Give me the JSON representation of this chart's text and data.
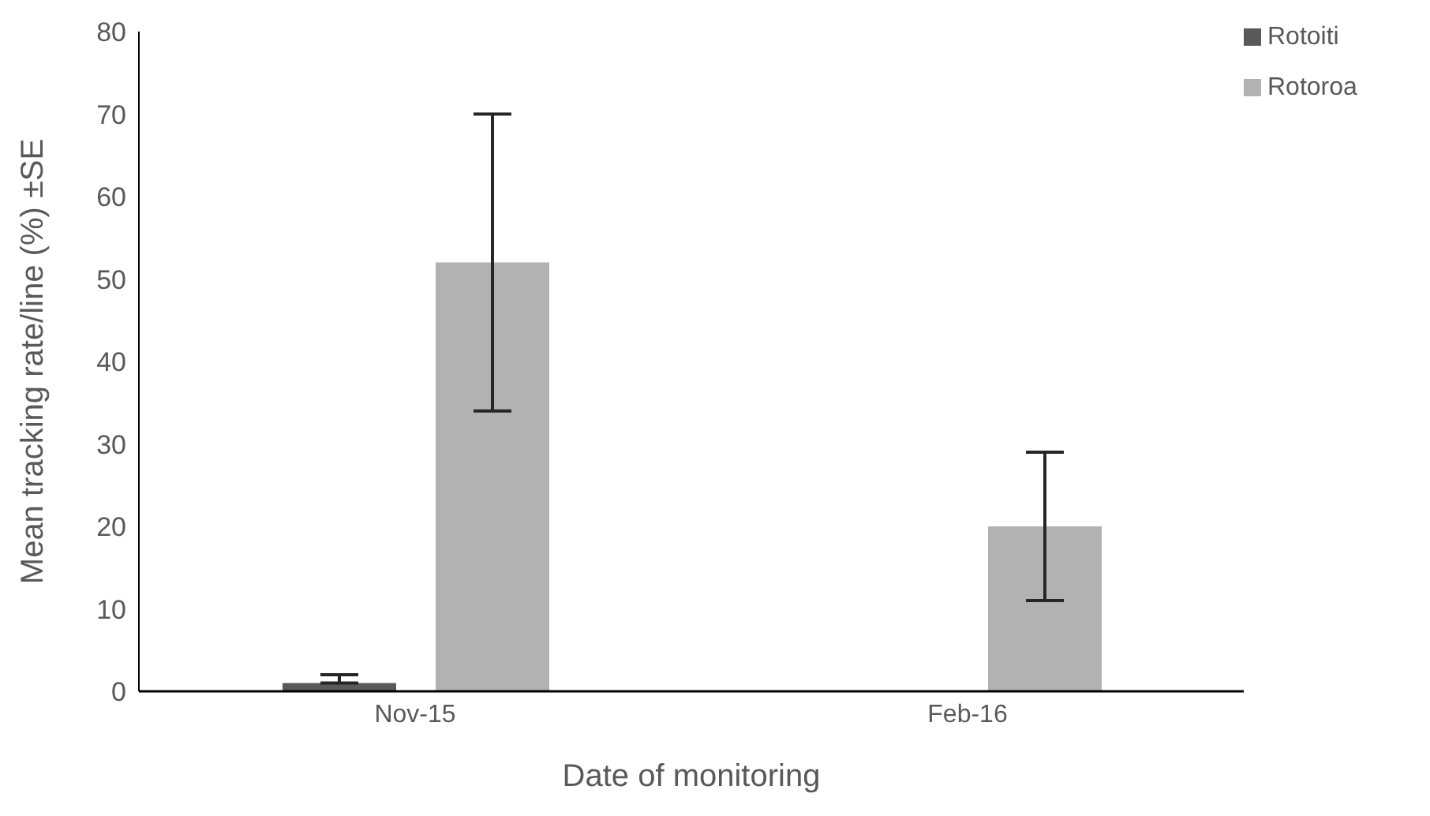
{
  "chart_data": {
    "type": "bar",
    "xlabel": "Date of monitoring",
    "ylabel": "Mean tracking rate/line (%) ±SE",
    "categories": [
      "Nov-15",
      "Feb-16"
    ],
    "series": [
      {
        "name": "Rotoiti",
        "color": "#595959",
        "values": [
          1,
          0
        ],
        "errors": [
          [
            1,
            2
          ],
          null
        ]
      },
      {
        "name": "Rotoroa",
        "color": "#b2b2b2",
        "values": [
          52,
          20
        ],
        "errors": [
          18,
          9
        ]
      }
    ],
    "ylim": [
      0,
      80
    ],
    "yticks": [
      0,
      10,
      20,
      30,
      40,
      50,
      60,
      70,
      80
    ],
    "grid": false,
    "legend": "top right"
  }
}
